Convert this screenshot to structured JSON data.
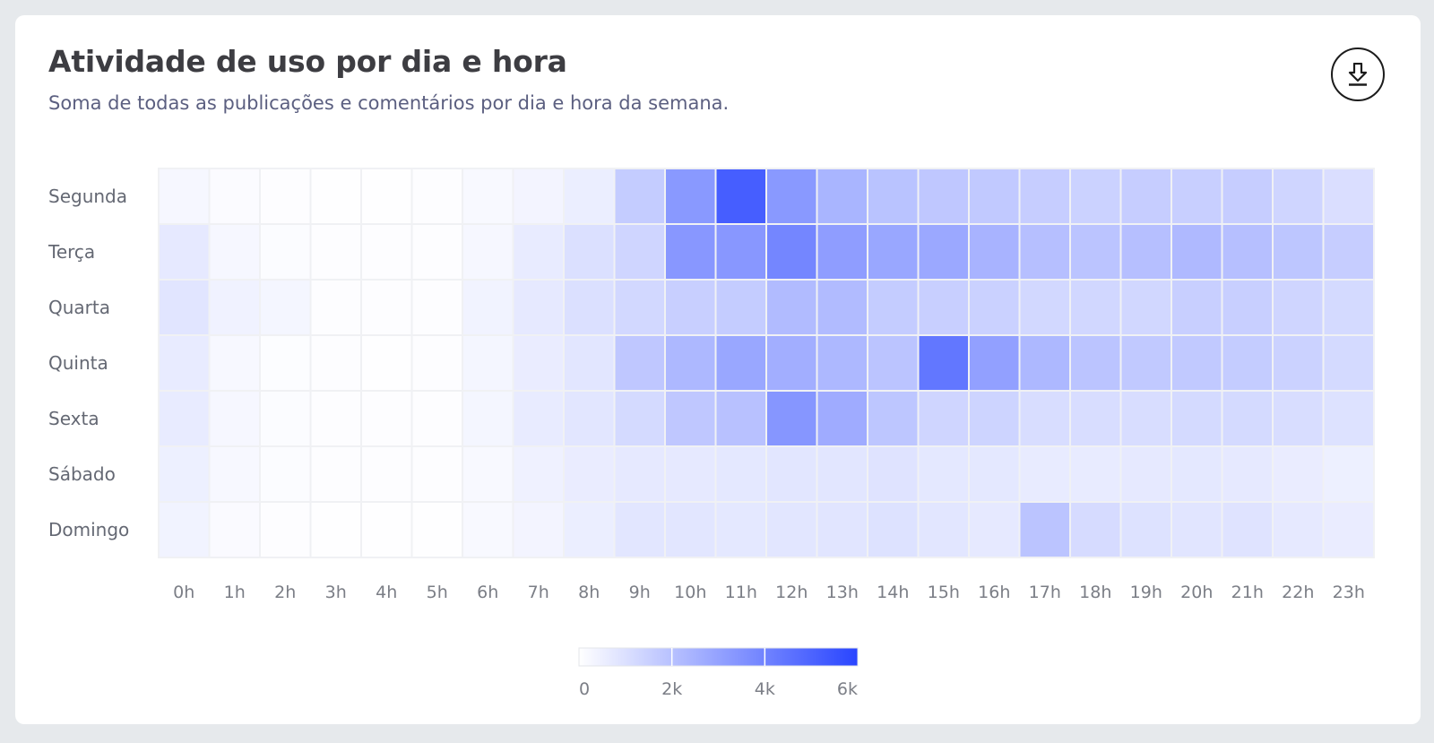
{
  "title": "Atividade de uso por dia e hora",
  "subtitle": "Soma de todas as publicações e comentários por dia e hora da semana.",
  "download_icon": "download-icon",
  "colors": {
    "low": "#ffffff",
    "high": "#2945ff",
    "grid": "#f0f1f4"
  },
  "chart_data": {
    "type": "heatmap",
    "title": "Atividade de uso por dia e hora",
    "subtitle": "Soma de todas as publicações e comentários por dia e hora da semana.",
    "rows": [
      "Segunda",
      "Terça",
      "Quarta",
      "Quinta",
      "Sexta",
      "Sábado",
      "Domingo"
    ],
    "columns": [
      "0h",
      "1h",
      "2h",
      "3h",
      "4h",
      "5h",
      "6h",
      "7h",
      "8h",
      "9h",
      "10h",
      "11h",
      "12h",
      "13h",
      "14h",
      "15h",
      "16h",
      "17h",
      "18h",
      "19h",
      "20h",
      "21h",
      "22h",
      "23h"
    ],
    "values": [
      [
        250,
        120,
        60,
        40,
        40,
        50,
        200,
        350,
        560,
        1650,
        3300,
        5200,
        3300,
        2400,
        1950,
        1800,
        1750,
        1600,
        1450,
        1600,
        1550,
        1600,
        1350,
        1050
      ],
      [
        700,
        260,
        110,
        60,
        50,
        60,
        250,
        650,
        1000,
        1350,
        3350,
        3350,
        3900,
        3150,
        2850,
        2800,
        2450,
        2050,
        1900,
        2050,
        2250,
        2050,
        1850,
        1600
      ],
      [
        850,
        420,
        300,
        70,
        50,
        60,
        400,
        700,
        1000,
        1250,
        1550,
        1650,
        2200,
        2200,
        1650,
        1550,
        1500,
        1250,
        1300,
        1300,
        1550,
        1550,
        1350,
        1200
      ],
      [
        650,
        220,
        80,
        50,
        40,
        50,
        300,
        600,
        800,
        1800,
        2300,
        2850,
        2600,
        2300,
        1900,
        4400,
        3050,
        2300,
        1900,
        1750,
        1750,
        1650,
        1450,
        1200
      ],
      [
        650,
        250,
        100,
        60,
        50,
        60,
        300,
        650,
        800,
        1200,
        1800,
        2000,
        3400,
        2700,
        1850,
        1350,
        1400,
        1100,
        1100,
        1100,
        1200,
        1200,
        1100,
        950
      ],
      [
        500,
        220,
        100,
        60,
        50,
        60,
        200,
        450,
        600,
        700,
        700,
        750,
        800,
        800,
        900,
        750,
        750,
        650,
        650,
        700,
        750,
        700,
        600,
        500
      ],
      [
        400,
        150,
        60,
        40,
        40,
        40,
        200,
        350,
        550,
        800,
        800,
        750,
        800,
        850,
        950,
        800,
        700,
        1900,
        1150,
        950,
        850,
        900,
        700,
        600
      ]
    ],
    "colorscale": {
      "min": 0,
      "max": 6000,
      "low": "#ffffff",
      "high": "#2945ff"
    },
    "legend": {
      "ticks": [
        0,
        2000,
        4000,
        6000
      ],
      "tick_labels": [
        "0",
        "2k",
        "4k",
        "6k"
      ]
    }
  }
}
